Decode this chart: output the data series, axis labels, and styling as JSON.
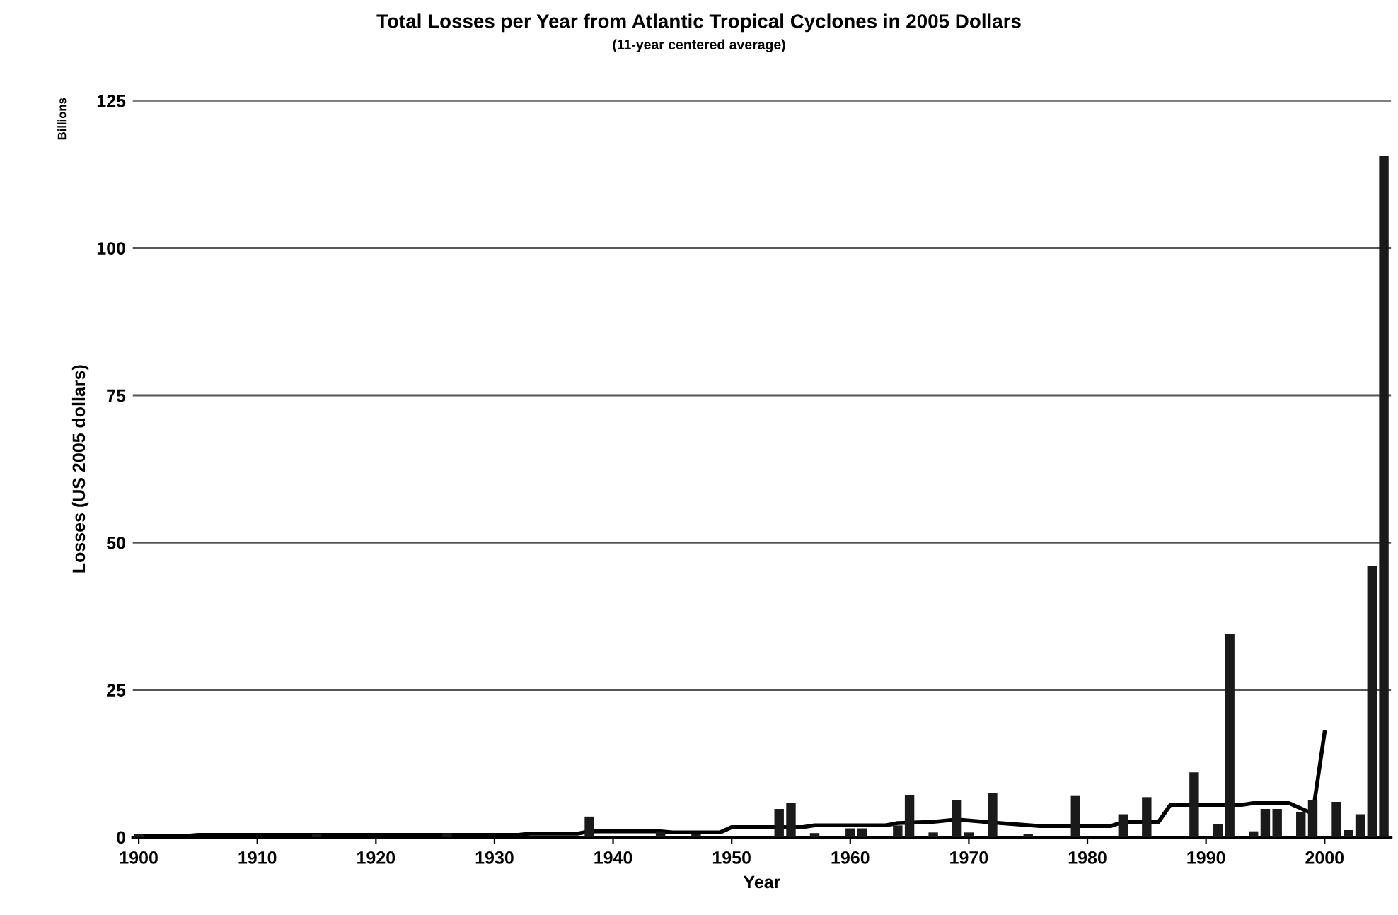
{
  "chart_data": {
    "type": "bar",
    "title": "Total Losses per Year from Atlantic Tropical Cyclones in 2005 Dollars",
    "subtitle": "(11-year centered average)",
    "xlabel": "Year",
    "ylabel": "Losses (US 2005 dollars)",
    "annotations": [
      "Billions"
    ],
    "series": [
      {
        "color": "#1a1a1a",
        "x": [
          1900,
          1915,
          1926,
          1938,
          1944,
          1947,
          1954,
          1955,
          1957,
          1960,
          1961,
          1964,
          1965,
          1967,
          1969,
          1970,
          1972,
          1975,
          1979,
          1983,
          1985,
          1989,
          1991,
          1992,
          1994,
          1995,
          1996,
          1998,
          1999,
          2001,
          2002,
          2003,
          2004,
          2005
        ],
        "values": [
          0.6,
          0.5,
          0.7,
          3.5,
          1.0,
          0.5,
          4.8,
          5.8,
          0.7,
          1.5,
          1.5,
          2.0,
          7.2,
          0.8,
          6.3,
          0.8,
          7.5,
          0.6,
          7.0,
          3.9,
          6.8,
          11,
          2.2,
          34.5,
          1.0,
          4.8,
          4.8,
          4.3,
          6.3,
          6.0,
          1.2,
          3.9,
          46,
          115.6
        ]
      },
      {
        "type": "line",
        "color": "#000000",
        "x": [
          1900,
          1904,
          1905,
          1932,
          1933,
          1937,
          1938,
          1944,
          1945,
          1949,
          1950,
          1956,
          1957,
          1963,
          1964,
          1967,
          1969,
          1972,
          1974,
          1976,
          1982,
          1983,
          1986,
          1987,
          1993,
          1994,
          1997,
          1999,
          2000
        ],
        "values": [
          0.2,
          0.2,
          0.4,
          0.4,
          0.6,
          0.6,
          1.0,
          1.0,
          0.8,
          0.8,
          1.7,
          1.7,
          2.0,
          2.0,
          2.4,
          2.6,
          3.0,
          2.5,
          2.2,
          1.9,
          1.9,
          2.6,
          2.6,
          5.5,
          5.5,
          5.8,
          5.8,
          4.0,
          17.8
        ]
      }
    ],
    "xlim": [
      1899.5,
      2005.6
    ],
    "xticks": [
      1900,
      1910,
      1920,
      1930,
      1940,
      1950,
      1960,
      1970,
      1980,
      1990,
      2000
    ],
    "ylim": [
      0,
      125
    ],
    "yticks": [
      0,
      25,
      50,
      75,
      100,
      125
    ],
    "grid": "y"
  }
}
